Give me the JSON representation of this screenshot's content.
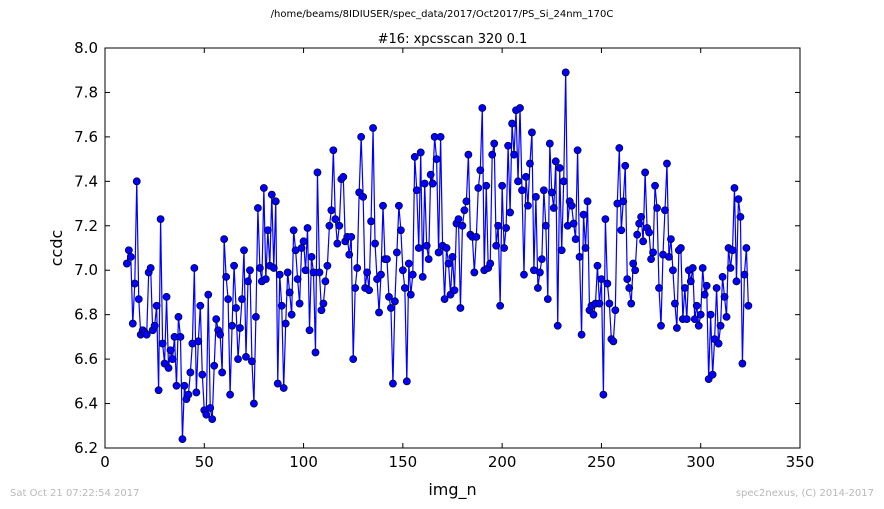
{
  "suptitle": "/home/beams/8IDIUSER/spec_data/2017/Oct2017/PS_Si_24nm_170C",
  "footer_left": "Sat Oct 21 07:22:54 2017",
  "footer_right": "spec2nexus, (C) 2014-2017",
  "chart_data": {
    "type": "line",
    "title": "#16: xpcsscan 320 0.1",
    "xlabel": "img_n",
    "ylabel": "ccdc",
    "xlim": [
      0,
      350
    ],
    "ylim": [
      6.2,
      8.0
    ],
    "xticks": [
      0,
      50,
      100,
      150,
      200,
      250,
      300,
      350
    ],
    "yticks": [
      6.2,
      6.4,
      6.6,
      6.8,
      7.0,
      7.2,
      7.4,
      7.6,
      7.8,
      8.0
    ],
    "xtick_labels": [
      "0",
      "50",
      "100",
      "150",
      "200",
      "250",
      "300",
      "350"
    ],
    "ytick_labels": [
      "6.2",
      "6.4",
      "6.6",
      "6.8",
      "7.0",
      "7.2",
      "7.4",
      "7.6",
      "7.8",
      "8.0"
    ],
    "grid": false,
    "series": [
      {
        "color": "#0000ff",
        "marker": "circle",
        "x_start": 11,
        "x_step": 1,
        "y": [
          7.03,
          7.09,
          7.06,
          6.76,
          6.94,
          7.4,
          6.87,
          6.71,
          6.73,
          6.72,
          6.71,
          6.99,
          7.01,
          6.73,
          6.75,
          6.84,
          6.46,
          7.23,
          6.67,
          6.58,
          6.88,
          6.56,
          6.64,
          6.6,
          6.7,
          6.48,
          6.79,
          6.7,
          6.24,
          6.48,
          6.42,
          6.44,
          6.54,
          6.67,
          7.01,
          6.45,
          6.68,
          6.84,
          6.53,
          6.37,
          6.35,
          6.89,
          6.38,
          6.33,
          6.57,
          6.78,
          6.73,
          6.71,
          6.54,
          7.14,
          6.97,
          6.87,
          6.44,
          6.75,
          7.02,
          6.83,
          6.6,
          6.74,
          6.87,
          7.09,
          6.61,
          6.95,
          7.0,
          6.59,
          6.4,
          6.79,
          7.28,
          7.01,
          6.95,
          7.37,
          6.96,
          7.18,
          7.02,
          7.34,
          7.01,
          7.31,
          6.49,
          6.98,
          6.84,
          6.47,
          6.76,
          6.99,
          6.9,
          6.8,
          7.18,
          7.09,
          6.96,
          6.85,
          7.1,
          7.13,
          7.0,
          7.19,
          6.73,
          7.06,
          6.99,
          6.63,
          7.44,
          6.99,
          6.82,
          6.85,
          6.95,
          7.02,
          7.2,
          7.27,
          7.54,
          7.23,
          7.12,
          7.2,
          7.41,
          7.42,
          7.13,
          7.15,
          7.07,
          7.15,
          6.6,
          6.92,
          7.01,
          7.35,
          7.6,
          7.33,
          6.92,
          6.99,
          6.91,
          7.22,
          7.64,
          7.12,
          6.96,
          6.81,
          6.98,
          7.29,
          7.05,
          7.05,
          6.88,
          6.83,
          6.49,
          6.86,
          7.08,
          7.29,
          7.18,
          7.0,
          6.92,
          6.5,
          7.03,
          6.89,
          6.98,
          7.51,
          7.36,
          7.1,
          7.53,
          6.97,
          7.39,
          7.11,
          7.05,
          7.43,
          7.39,
          7.6,
          7.5,
          7.08,
          7.6,
          7.11,
          6.87,
          7.1,
          7.03,
          6.89,
          7.06,
          6.91,
          7.21,
          7.23,
          6.83,
          7.2,
          7.27,
          7.31,
          7.52,
          7.16,
          7.15,
          6.99,
          7.15,
          7.37,
          7.45,
          7.73,
          7.0,
          7.38,
          7.01,
          7.03,
          7.52,
          7.57,
          7.11,
          7.2,
          6.84,
          7.38,
          7.1,
          7.19,
          7.56,
          7.26,
          7.66,
          7.52,
          7.72,
          7.4,
          7.73,
          7.36,
          6.98,
          7.42,
          7.29,
          7.48,
          7.62,
          7.0,
          7.33,
          6.92,
          6.99,
          7.05,
          7.36,
          7.2,
          6.87,
          7.57,
          7.35,
          7.28,
          7.49,
          6.75,
          7.46,
          7.09,
          7.4,
          7.89,
          7.2,
          7.31,
          7.29,
          7.21,
          7.14,
          7.54,
          7.06,
          6.71,
          7.25,
          7.1,
          7.31,
          6.82,
          6.84,
          6.8,
          6.85,
          7.02,
          6.85,
          6.96,
          6.44,
          7.23,
          6.94,
          6.85,
          6.69,
          6.68,
          6.82,
          7.3,
          7.55,
          7.18,
          7.31,
          7.47,
          6.96,
          6.92,
          6.85,
          7.03,
          7.0,
          7.16,
          7.21,
          7.24,
          7.13,
          7.44,
          7.19,
          7.17,
          7.05,
          7.08,
          7.38,
          7.28,
          6.92,
          6.75,
          7.07,
          7.27,
          7.48,
          7.06,
          7.14,
          7.0,
          6.85,
          6.74,
          7.09,
          7.1,
          6.78,
          6.92,
          6.78,
          7.0,
          6.95,
          7.01,
          6.78,
          6.84,
          6.75,
          6.8,
          7.01,
          6.89,
          6.93,
          6.51,
          6.8,
          6.53,
          6.69,
          6.92,
          6.67,
          6.75,
          6.97,
          6.88,
          6.79,
          7.1,
          7.01,
          7.09,
          7.37,
          6.95,
          7.32,
          7.24,
          6.58,
          6.98,
          7.1,
          6.84
        ]
      }
    ]
  }
}
